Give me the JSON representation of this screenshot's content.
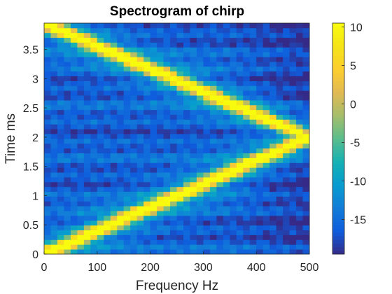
{
  "chart_data": {
    "type": "heatmap",
    "title": "Spectrogram of chirp",
    "xlabel": "Frequency Hz",
    "ylabel": "Time ms",
    "xlim": [
      0,
      500
    ],
    "ylim": [
      0,
      3.95
    ],
    "x_ticks": [
      0,
      100,
      200,
      300,
      400,
      500
    ],
    "y_ticks": [
      0,
      0.5,
      1,
      1.5,
      2,
      2.5,
      3,
      3.5
    ],
    "grid": false,
    "colormap": "parula",
    "colorbar": {
      "ticks": [
        10,
        5,
        0,
        -5,
        -10,
        -15
      ],
      "range": [
        -19.5,
        10.5
      ]
    },
    "data_description_values": {
      "chirp_frequency_at_time_0": 0,
      "chirp_frequency_at_time_2": 500,
      "chirp_frequency_at_time_3_95": 0,
      "peak_level": 10.5,
      "background_level": -16
    }
  }
}
